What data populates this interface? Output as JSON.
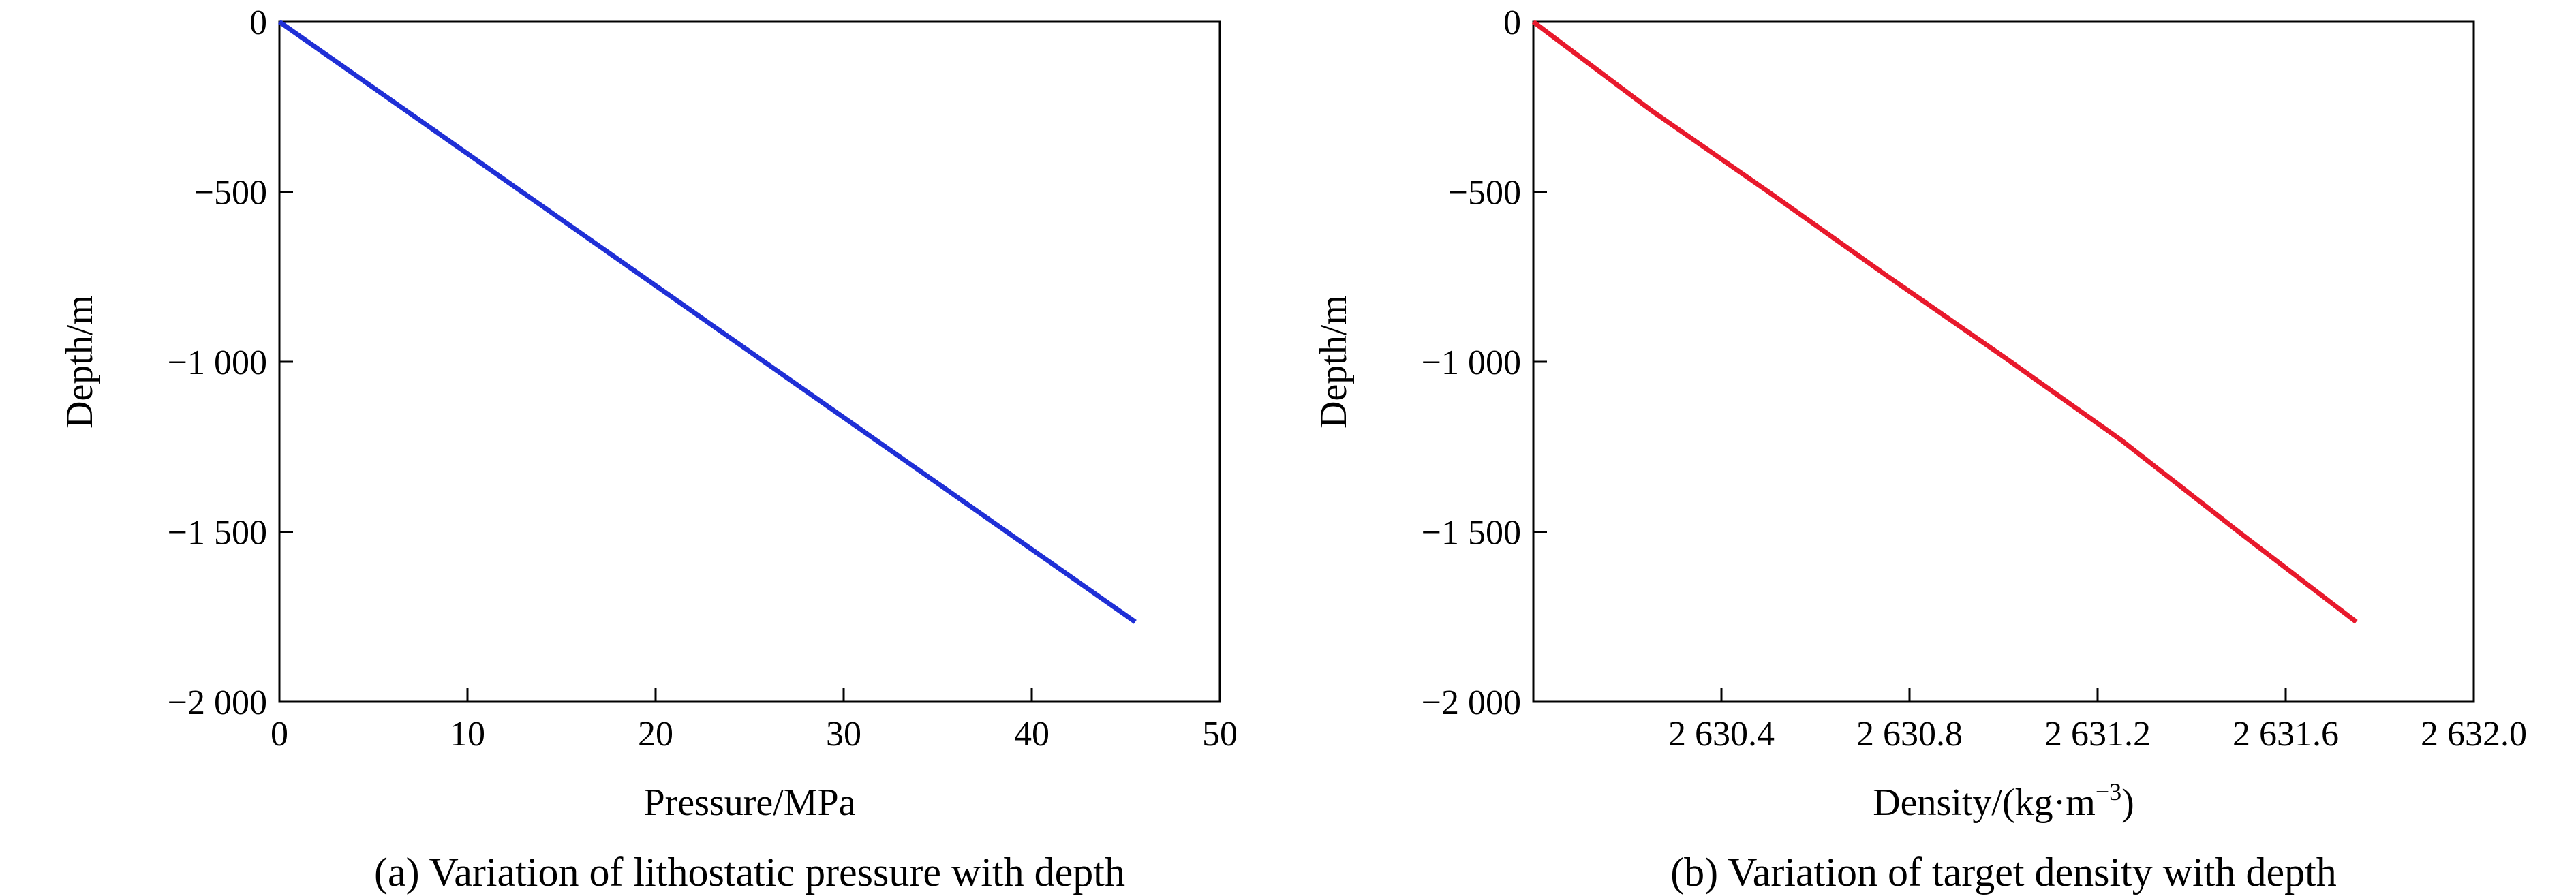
{
  "chart_data": [
    {
      "type": "line",
      "caption": "(a) Variation of lithostatic pressure with depth",
      "xlabel": "Pressure/MPa",
      "ylabel": "Depth/m",
      "xlim": [
        0,
        50
      ],
      "ylim": [
        -2000,
        0
      ],
      "xticks": [
        0,
        10,
        20,
        30,
        40,
        50
      ],
      "xtick_labels": [
        "0",
        "10",
        "20",
        "30",
        "40",
        "50"
      ],
      "yticks": [
        0,
        -500,
        -1000,
        -1500,
        -2000
      ],
      "ytick_labels": [
        "0",
        "−500",
        "−1 000",
        "−1 500",
        "−2 000"
      ],
      "grid": false,
      "series": [
        {
          "color": "#1f2fd6",
          "x": [
            0,
            45.5
          ],
          "y": [
            0,
            -1765
          ]
        }
      ]
    },
    {
      "type": "line",
      "caption": "(b) Variation of target density with depth",
      "xlabel_main": "Density/(kg·m",
      "xlabel_sup": "−3",
      "xlabel_end": ")",
      "ylabel": "Depth/m",
      "xlim": [
        2630.0,
        2632.0
      ],
      "ylim": [
        -2000,
        0
      ],
      "xticks": [
        2630.4,
        2630.8,
        2631.2,
        2631.6,
        2632.0
      ],
      "xtick_labels": [
        "2 630.4",
        "2 630.8",
        "2 631.2",
        "2 631.6",
        "2 632.0"
      ],
      "yticks": [
        0,
        -500,
        -1000,
        -1500,
        -2000
      ],
      "ytick_labels": [
        "0",
        "−500",
        "−1 000",
        "−1 500",
        "−2 000"
      ],
      "grid": false,
      "series": [
        {
          "color": "#e8192c",
          "x": [
            2630.0,
            2630.25,
            2630.5,
            2630.75,
            2631.0,
            2631.25,
            2631.5,
            2631.75
          ],
          "y": [
            0,
            -260,
            -500,
            -745,
            -985,
            -1230,
            -1500,
            -1765
          ]
        }
      ]
    }
  ]
}
